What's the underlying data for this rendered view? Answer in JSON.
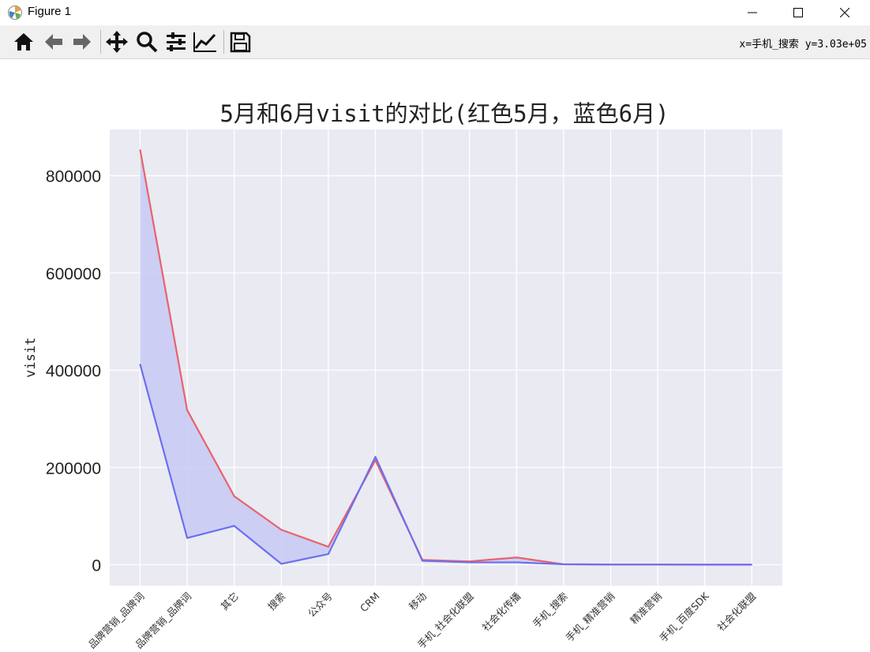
{
  "window": {
    "title": "Figure 1"
  },
  "toolbar": {
    "buttons": [
      {
        "icon": "home-icon",
        "tooltip": "Home"
      },
      {
        "icon": "back-arrow-icon",
        "tooltip": "Back"
      },
      {
        "icon": "forward-arrow-icon",
        "tooltip": "Forward"
      },
      {
        "icon": "pan-icon",
        "tooltip": "Pan"
      },
      {
        "icon": "zoom-icon",
        "tooltip": "Zoom"
      },
      {
        "icon": "subplots-icon",
        "tooltip": "Subplots"
      },
      {
        "icon": "customize-icon",
        "tooltip": "Customize"
      },
      {
        "icon": "save-icon",
        "tooltip": "Save"
      }
    ],
    "coords": "x=手机_搜索 y=3.03e+05"
  },
  "colors": {
    "series_may": "#e8636b",
    "series_june": "#6b6ff0",
    "fill": "#c7c9f4",
    "plot_bg": "#eaeaf2"
  },
  "chart_data": {
    "type": "line",
    "title": "5月和6月visit的对比(红色5月，蓝色6月)",
    "xlabel": "",
    "ylabel": "visit",
    "categories": [
      "品牌营销_品牌词",
      "品牌营销_品牌词",
      "其它",
      "搜索",
      "公众号",
      "CRM",
      "移动",
      "手机_社会化联盟",
      "社会化传播",
      "手机_搜索",
      "手机_精准营销",
      "精准营销",
      "手机_百度SDK",
      "社会化联盟"
    ],
    "series": [
      {
        "values": [
          853000,
          318000,
          141000,
          72000,
          37000,
          215000,
          10000,
          7000,
          15000,
          1000,
          500,
          500,
          200,
          200
        ]
      },
      {
        "values": [
          412000,
          55000,
          80000,
          2000,
          22000,
          222000,
          8000,
          5000,
          5000,
          1000,
          500,
          500,
          200,
          200
        ]
      }
    ],
    "yticks": [
      "0",
      "200000",
      "400000",
      "600000",
      "800000"
    ],
    "ylim": [
      -43000,
      895000
    ],
    "grid": true,
    "legend": "none"
  }
}
